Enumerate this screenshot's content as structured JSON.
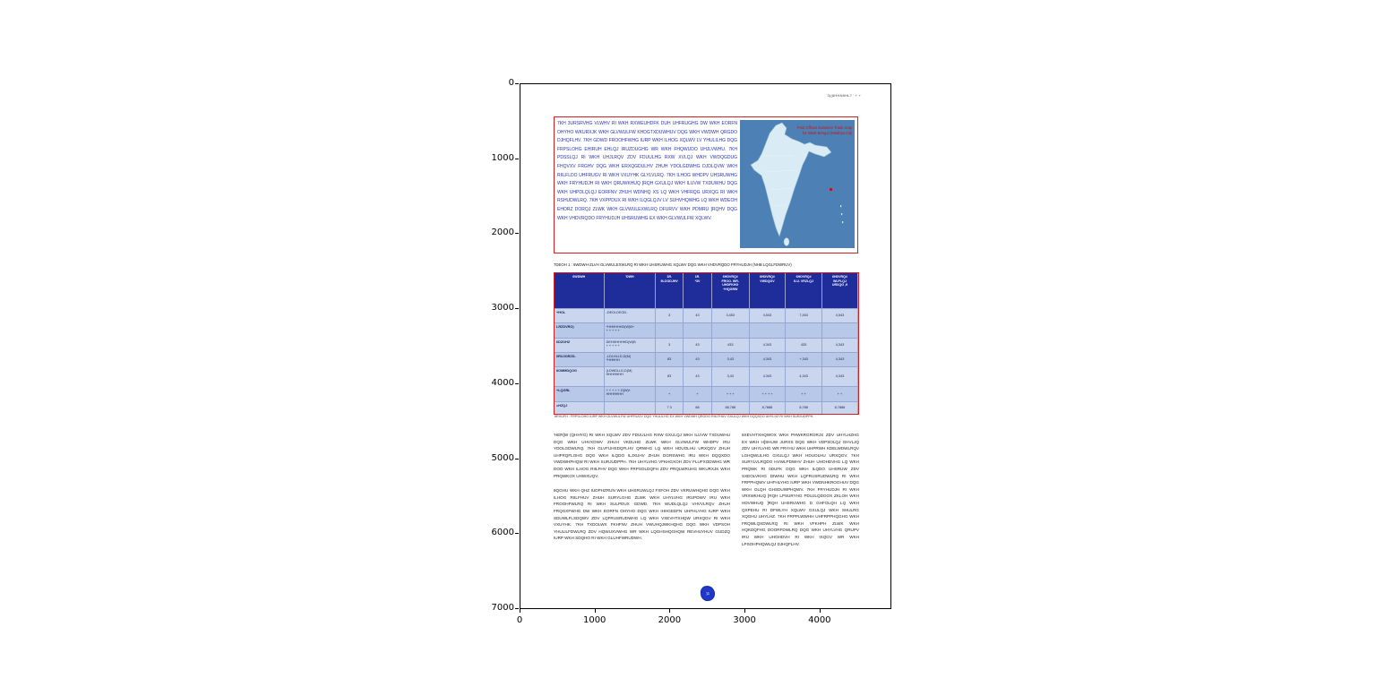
{
  "figure": {
    "x_ticks": [
      "0",
      "1000",
      "2000",
      "3000",
      "4000"
    ],
    "y_ticks": [
      "0",
      "1000",
      "2000",
      "3000",
      "4000",
      "5000",
      "6000",
      "7000"
    ]
  },
  "page": {
    "header_right": "3)(6HHN5HL7 ' + +",
    "intro": {
      "text": "7KH 3URSRVHG VLWHV RI WKH RXWEUHDFK DUH UHFRUGHG DW WKH EORFN OHYHO WKURXJK WKH GLVWULFW KHDGTXDUWHUV DQG WKH VWDWH QRGDO DJHQFLHV. 7KH GDWD FROOHFWHG IURP WKH ILHOG XQLWV LV YHULILHG DQG FRPSLOHG EHIRUH EHLQJ IRUZDUGHG WR WKH FHQWUDO UHJLVWHU. 7KH PDSSLQJ RI WKH UHJLRQV ZDV FDUULHG RXW XVLQJ WKH VWDQGDUG FHQVXV FRGHV DQG WKH ERXQGDULHV ZHUH YDOLGDWHG DJDLQVW WKH RIILFLDO UHFRUGV RI WKH VXUYHK GLYLVLRQ. 7KH ILHOG WHDPV UHSRUWHG WKH FRYHUDJH RI WKH QRUWKHUQ ]RQH GXULQJ WKH ILUVW TXDUWHU DQG WKH UHPDLQLQJ EORFNV ZHUH WDNHQ XS LQ WKH VHFRQG URXQG RI WKH RSHUDWLRQ. 7KH VXPPDUX RI WKH ILQGLQJV LV SUHVHQWHG LQ WKH WDEOH EHORZ DORQJ ZLWK WKH GLVWULEXWLRQ DFURVV WKH PDMRU ]RQHV DQG WKH VHDVRQDO FRYHUDJH UHSRUWHG EX WKH GLVWULFW XQLWV."
    },
    "map": {
      "caption_line1": "Post Offices Examine Trade map",
      "caption_line2": "for West Bengal (Madhya mil)"
    },
    "table_caption": "7DEOH 1 : 6WDWH-ZLVH GLVWULEXWLRQ RI WKH UHSRUWHG XQLWV DQG WKH VHDVRQDO FRYHUDJH (NHB LQGLFDWRUV)",
    "table": {
      "headers": [
        "6WDWH",
        "'DWH",
        "1R.\n9LOODJHV",
        "1R.\n*3V",
        "6HDVRQ#\nFROO. WR-\nUHDFKHG\n+HQGRW",
        "6HDVRQ#\nVWDQGV",
        "6HDVRQ#\nILU. VRZLQJ",
        "6HDVRQ#\nWLPLQJ\nURXQG ,9"
      ],
      "rows": [
        [
          "+HOL",
          "-DEOLDEOD-",
          "3",
          "43",
          "3,453",
          "4,543",
          "7,453",
          "4,543"
        ],
        [
          "LRZDVRO)",
          "*HHHHHHD(W)B+\n+ + + + +",
          "",
          "",
          "",
          "",
          "",
          ""
        ],
        [
          "6DZOHZ",
          "DEHHHHHHD(W)B\n+ + + + +",
          "3",
          "43",
          "433",
          "4,343",
          "433",
          "4,343"
        ],
        [
          "0RUJORZD-",
          "-LDLHLLD,D(M)\n*HHHHH",
          "83",
          "43",
          "3,43",
          "4,343",
          "+,343",
          "4,343"
        ],
        [
          "8OMMDQOG",
          "(LDWDLLD,D(M)\nHHHHHHH",
          "83",
          "43",
          "3,43",
          "4,343",
          "4,343",
          "4,343"
        ],
        [
          "+LQGRL",
          "+ + + + + D(W)+\nHHHHHHH",
          "+",
          "+",
          "+ + +",
          "+ + + +",
          "+ +",
          "+ +"
        ],
        [
          "=HZQJ",
          "",
          "7 3",
          "88",
          "88,788",
          "8,7888",
          "8,788",
          "8,7888"
        ]
      ]
    },
    "footnote": "6RXUFH : FRPSLOHG IURP WKH GLVWULFW UHFRUGV DQG YHULILHG EX WKH VWDWH QRGDO RIILFHUV GXULQJ WKH DQQXDO UHYLHZ RI WKH SURJUDPPH.",
    "body": {
      "left_p1": "'HER[W (QHHYG) RI WKH XQLWV ZDV FDUULHG RXW GXULQJ WKH ILUVW TXDUWHU DQG WKH UHVXOWV ZHUH VKDUHG ZLWK WKH GLVWULFW WHDPV IRU YDOLGDWLRQ. 7KH GLVFUHSDQFLHV QRWHG LQ WKH HDUOLHU URXQGV ZHUH UHFRQFLOHG DQG WKH ILQDO ILJXUHV ZHUH DGRSWHG IRU WKH DQQXDO VWDWHPHQW RI WKH SURJUDPPH. 7KH UHYLVHG VFKHGXOH ZDV FLUFXODWHG WR DOO WKH ILHOG RIILFHV DQG WKH FRPSOLDQFH ZDV PRQLWRUHG WKURXJK WKH PRQWKOX UHWXUQV.",
      "left_p2": "8QGHU WKH QHZ IUDPHZRUN WKH UHSRUWLQJ FXFOH ZDV VKRUWHQHG DQG WKH ILHOG RIILFHUV ZHUH SURYLGHG ZLWK WKH UHYLVHG IRUPDWV IRU WKH FROOHFWLRQ RI WKH SULPDUX GDWD. 7KH WUDLQLQJ VHVVLRQV ZHUH FRQGXFWHG DW WKH EORFN OHYHO DQG WKH IHHGEDFN UHFHLYHG IURP WKH SDUWLFLSDQWV ZDV LQFRUSRUDWHG LQ WKH VXEVHTXHQW URXQGV RI WKH VXUYHK. 7KH TXDOLWX FKHFNV ZHUH VWUHQJWKHQHG DQG WKH VDPSOH YHULILFDWLRQ ZDV HQWUXVWHG WR WKH LQGHSHQGHQW REVHUYHUV GUDZQ IURP WKH SDQHO RI WKH GLUHFWRUDWH.",
      "right_p1": "6XEVHTXHQWOX WKH PHWKRGRORJX ZDV UHYLHZHG EX WKH H[SHUW JURXS DQG WKH VDPSOLQJ GHVLJQ ZDV UHYLVHG WR FRYHU WKH UHPRWH KDELWDWLRQV LGHQWLILHG GXULQJ WKH HDUOLHU URXQGV. 7KH SURYLVLRQDO HVWLPDWHV ZHUH UHOHDVHG LQ WKH PRQWK RI 0DUFK DQG WKH ILQDO UHSRUW ZDV SXEOLVKHG DIWHU WKH LQFRUSRUDWLRQ RI WKH FRPPHQWV UHFHLYHG IURP WKH VWDNHKROGHUV DQG WKH OLQH GHSDUWPHQWV. 7KH FRYHUDJH RI WKH VRXWKHUQ ]RQH LPSURYHG PDUJLQDOOX ZKLOH WKH HDVWHUQ ]RQH UHSRUWHG D GHFOLQH LQ WKH QXPEHU RI DFWLYH XQLWV GXULQJ WKH SHULRG XQGHU UHYLHZ. 7KH FRPPLWWHH UHFRPPHQGHG WKH FRQWLQXDWLRQ RI WKH VFKHPH ZLWK WKH HQKDQFHG DOORFDWLRQ DQG WKH UHYLVHG QRUPV IRU WKH UHOHDVH RI WKH IXQGV WR WKH LPSOHPHQWLQJ DJHQFLHV."
    },
    "stamp_label": "11",
    "colors": {
      "accent_red": "#d42020",
      "header_blue": "#1f2d9b",
      "row_light": "#c9d6ee",
      "row_dark": "#b7c8e9",
      "intro_text_blue": "#2433ae",
      "map_sea": "#4d80b4",
      "map_land": "#d9ecf5",
      "map_caption_red": "#cc1111",
      "stamp_blue": "#2038c8"
    }
  }
}
